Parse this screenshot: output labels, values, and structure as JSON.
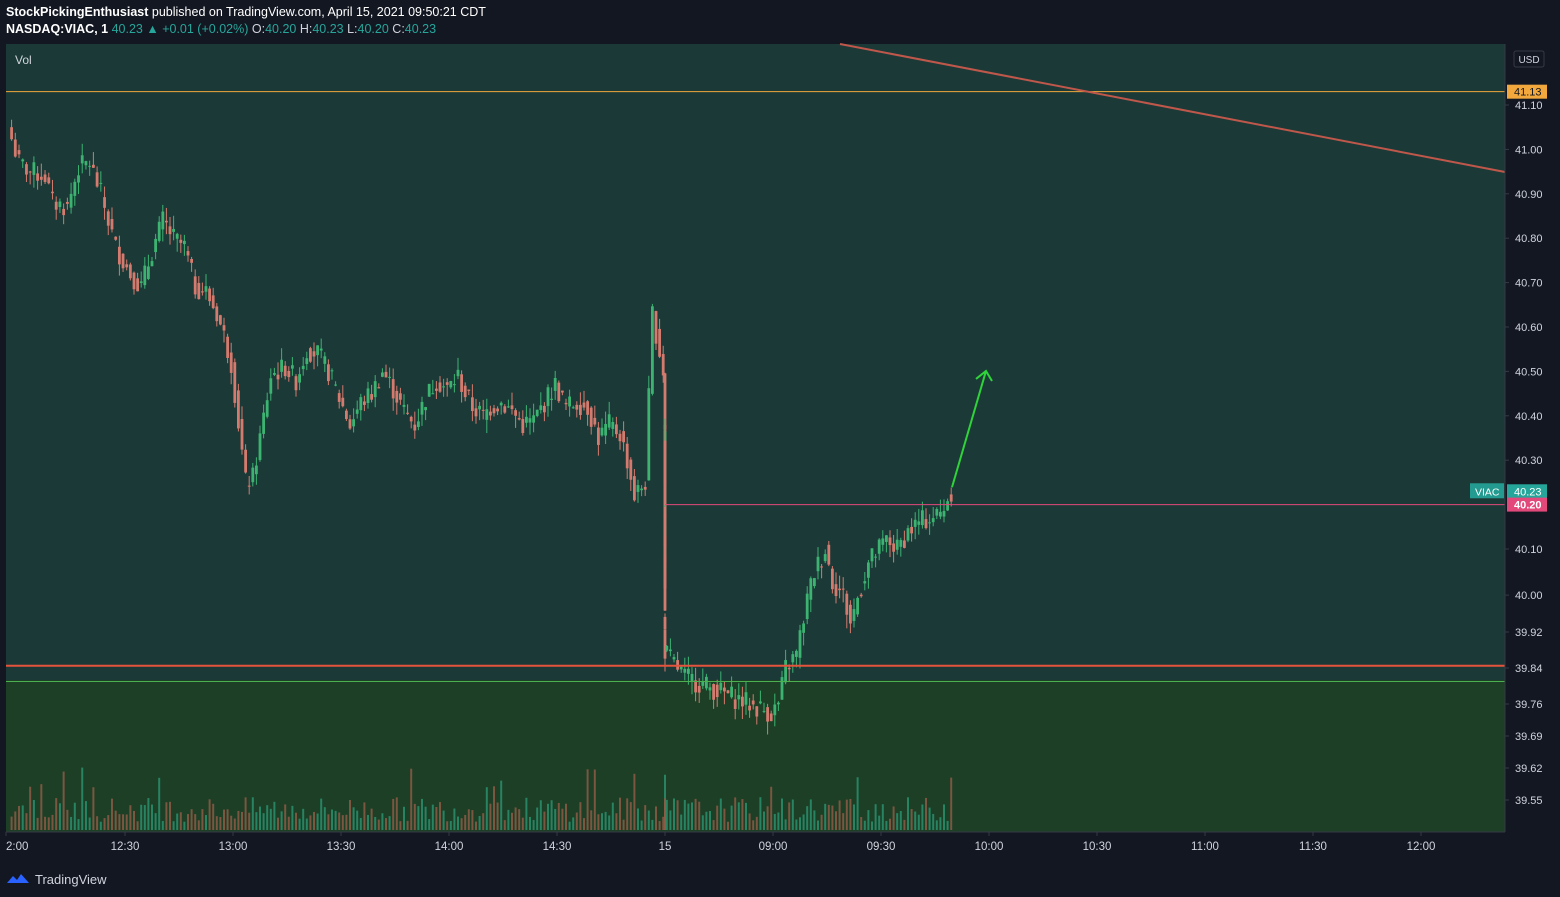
{
  "header": {
    "author": "StockPickingEnthusiast",
    "published_text": "published on TradingView.com, April 15, 2021 09:50:21 CDT",
    "symbol": "NASDAQ:VIAC, 1",
    "last_price": "40.23",
    "change_arrow": "▲",
    "change": "+0.01 (+0.02%)",
    "o_label": "O:",
    "o": "40.20",
    "h_label": "H:",
    "h": "40.23",
    "l_label": "L:",
    "l": "40.20",
    "c_label": "C:",
    "c": "40.23"
  },
  "volume_label": "Vol",
  "currency": "USD",
  "footer": {
    "brand": "TradingView",
    "logo_icon": "tradingview-logo-icon"
  },
  "colors": {
    "background": "#131722",
    "pane": "#1b3a37",
    "lower_zone": "#1c3f26",
    "up": "#26a69a",
    "down": "#ef5350",
    "up_fill": "#3cb371",
    "down_fill": "#d47a6e",
    "resistance_line": "#f2a83c",
    "trendline": "#c0574b",
    "support_line": "#e5533d",
    "zone_line": "#4caf50",
    "breakout_line": "#e2487a",
    "arrow": "#2fd33a"
  },
  "chart_data": {
    "type": "candlestick",
    "symbol": "NASDAQ:VIAC",
    "interval": "1",
    "x_ticks": [
      "2:00",
      "12:30",
      "13:00",
      "13:30",
      "14:00",
      "14:30",
      "15",
      "09:00",
      "09:30",
      "10:00",
      "10:30",
      "11:00",
      "11:30",
      "12:00"
    ],
    "y_ticks": [
      "41.10",
      "41.00",
      "40.90",
      "40.80",
      "40.70",
      "40.60",
      "40.50",
      "40.40",
      "40.30",
      "40.10",
      "40.00",
      "39.92",
      "39.84",
      "39.76",
      "39.69",
      "39.62",
      "39.55"
    ],
    "y_range": [
      39.46,
      41.25
    ],
    "price_labels": [
      {
        "name": "resistance",
        "value": 41.13,
        "text": "41.13"
      },
      {
        "name": "last",
        "value": 40.23,
        "text": "40.23",
        "tag": "VIAC"
      },
      {
        "name": "breakout",
        "value": 40.2,
        "text": "40.20"
      }
    ],
    "horizontal_lines": [
      {
        "name": "resistance-line",
        "price": 41.13
      },
      {
        "name": "support-line",
        "price": 39.845
      },
      {
        "name": "zone-top-line",
        "price": 39.81
      }
    ],
    "breakout_level": {
      "price": 40.2,
      "from": "08:52"
    },
    "trendline": {
      "from": {
        "time": "10:52",
        "price": 41.36
      },
      "to": {
        "time": "12:22",
        "price": 40.955
      }
    },
    "projection_arrow": {
      "from": {
        "time": "09:51",
        "price": 40.23
      },
      "to": {
        "time": "09:55",
        "price": 40.51
      }
    },
    "close_path": [
      [
        "11:59",
        41.05
      ],
      [
        "12:02",
        40.97
      ],
      [
        "12:05",
        40.95
      ],
      [
        "12:09",
        40.94
      ],
      [
        "12:11",
        40.88
      ],
      [
        "12:15",
        40.87
      ],
      [
        "12:18",
        40.96
      ],
      [
        "12:21",
        40.97
      ],
      [
        "12:24",
        40.9
      ],
      [
        "12:28",
        40.78
      ],
      [
        "12:32",
        40.72
      ],
      [
        "12:35",
        40.69
      ],
      [
        "12:38",
        40.77
      ],
      [
        "12:41",
        40.84
      ],
      [
        "12:44",
        40.8
      ],
      [
        "12:47",
        40.78
      ],
      [
        "12:50",
        40.69
      ],
      [
        "12:53",
        40.68
      ],
      [
        "12:56",
        40.63
      ],
      [
        "12:58",
        40.58
      ],
      [
        "13:00",
        40.52
      ],
      [
        "13:04",
        40.25
      ],
      [
        "13:06",
        40.26
      ],
      [
        "13:08",
        40.35
      ],
      [
        "13:11",
        40.49
      ],
      [
        "13:15",
        40.51
      ],
      [
        "13:18",
        40.48
      ],
      [
        "13:21",
        40.55
      ],
      [
        "13:24",
        40.54
      ],
      [
        "13:27",
        40.5
      ],
      [
        "13:30",
        40.44
      ],
      [
        "13:33",
        40.38
      ],
      [
        "13:36",
        40.43
      ],
      [
        "13:39",
        40.45
      ],
      [
        "13:42",
        40.5
      ],
      [
        "13:45",
        40.46
      ],
      [
        "13:48",
        40.41
      ],
      [
        "13:51",
        40.38
      ],
      [
        "13:54",
        40.44
      ],
      [
        "13:57",
        40.48
      ],
      [
        "14:00",
        40.46
      ],
      [
        "14:03",
        40.49
      ],
      [
        "14:05",
        40.45
      ],
      [
        "14:07",
        40.42
      ],
      [
        "14:10",
        40.4
      ],
      [
        "14:12",
        40.42
      ],
      [
        "14:15",
        40.43
      ],
      [
        "14:18",
        40.41
      ],
      [
        "14:21",
        40.38
      ],
      [
        "14:24",
        40.39
      ],
      [
        "14:27",
        40.43
      ],
      [
        "14:30",
        40.47
      ],
      [
        "14:33",
        40.42
      ],
      [
        "14:36",
        40.43
      ],
      [
        "14:39",
        40.42
      ],
      [
        "14:42",
        40.35
      ],
      [
        "14:45",
        40.38
      ],
      [
        "14:48",
        40.36
      ],
      [
        "14:50",
        40.3
      ],
      [
        "14:52",
        40.22
      ],
      [
        "14:55",
        40.25
      ],
      [
        "14:57",
        40.63
      ],
      [
        "15:00",
        40.5
      ],
      [
        "15:02",
        40.37
      ],
      [
        "15:03",
        40.12
      ],
      [
        "15:05",
        40.3
      ],
      [
        "15:07",
        40.26
      ],
      [
        "15:08",
        40.38
      ],
      [
        "15:10",
        40.34
      ],
      [
        "15:11",
        40.34
      ],
      [
        "08:32",
        40.05
      ],
      [
        "08:34",
        40.14
      ],
      [
        "08:36",
        40.08
      ],
      [
        "08:38",
        40.13
      ],
      [
        "08:40",
        40.18
      ],
      [
        "08:42",
        40.13
      ],
      [
        "08:45",
        40.08
      ],
      [
        "08:47",
        40.03
      ],
      [
        "08:50",
        39.96
      ],
      [
        "08:52",
        39.92
      ],
      [
        "08:54",
        39.88
      ],
      [
        "08:56",
        39.82
      ],
      [
        "08:58",
        39.78
      ],
      [
        "09:00",
        39.74
      ],
      [
        "09:02",
        39.76
      ],
      [
        "09:04",
        39.84
      ],
      [
        "09:07",
        39.87
      ],
      [
        "09:10",
        39.99
      ],
      [
        "09:12",
        40.05
      ],
      [
        "09:15",
        40.1
      ],
      [
        "09:17",
        40.03
      ],
      [
        "09:20",
        40.0
      ],
      [
        "09:22",
        39.94
      ],
      [
        "09:25",
        40.02
      ],
      [
        "09:27",
        40.07
      ],
      [
        "09:30",
        40.1
      ],
      [
        "09:32",
        40.12
      ],
      [
        "09:35",
        40.1
      ],
      [
        "09:38",
        40.14
      ],
      [
        "09:41",
        40.16
      ],
      [
        "09:44",
        40.17
      ],
      [
        "09:47",
        40.18
      ],
      [
        "09:50",
        40.23
      ]
    ]
  }
}
